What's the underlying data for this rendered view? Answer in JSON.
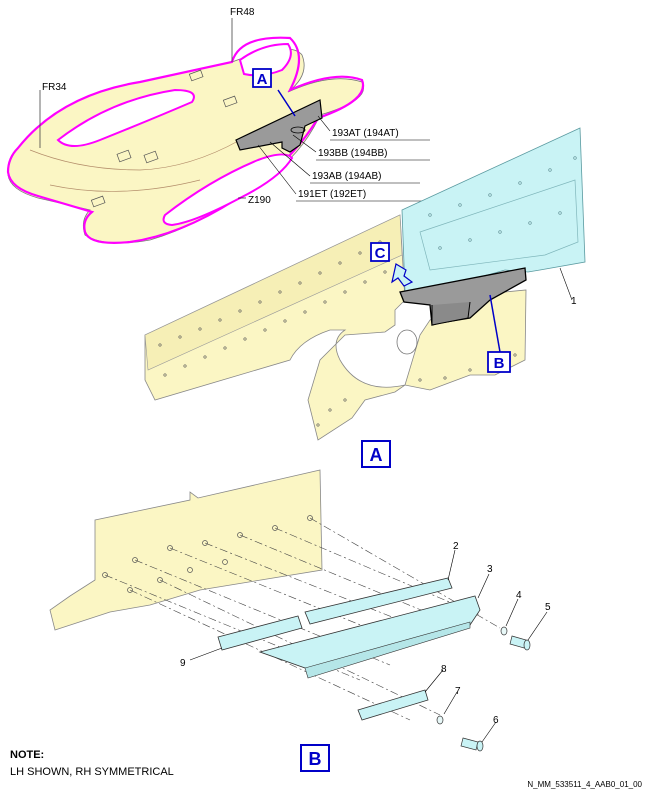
{
  "frames": {
    "fr48": "FR48",
    "fr34": "FR34",
    "z190": "Z190"
  },
  "callouts": {
    "a_small": "A",
    "b": "B",
    "c": "C",
    "view_a": "A",
    "view_b": "B"
  },
  "part_refs": {
    "p193at": "193AT (194AT)",
    "p193bb": "193BB (194BB)",
    "p193ab": "193AB (194AB)",
    "p191et": "191ET (192ET)"
  },
  "item_numbers": {
    "i1": "1",
    "i2": "2",
    "i3": "3",
    "i4": "4",
    "i5": "5",
    "i6": "6",
    "i7": "7",
    "i8": "8",
    "i9": "9"
  },
  "note": {
    "title": "NOTE:",
    "text": "LH SHOWN, RH SYMMETRICAL"
  },
  "drawing_code": "N_MM_533511_4_AAB0_01_00",
  "colors": {
    "structure": "#fbf6c4",
    "highlight": "#ff00ff",
    "panel": "#c9f3f5",
    "callout_blue": "#0000c8",
    "part_gray": "#9a9a9a"
  }
}
